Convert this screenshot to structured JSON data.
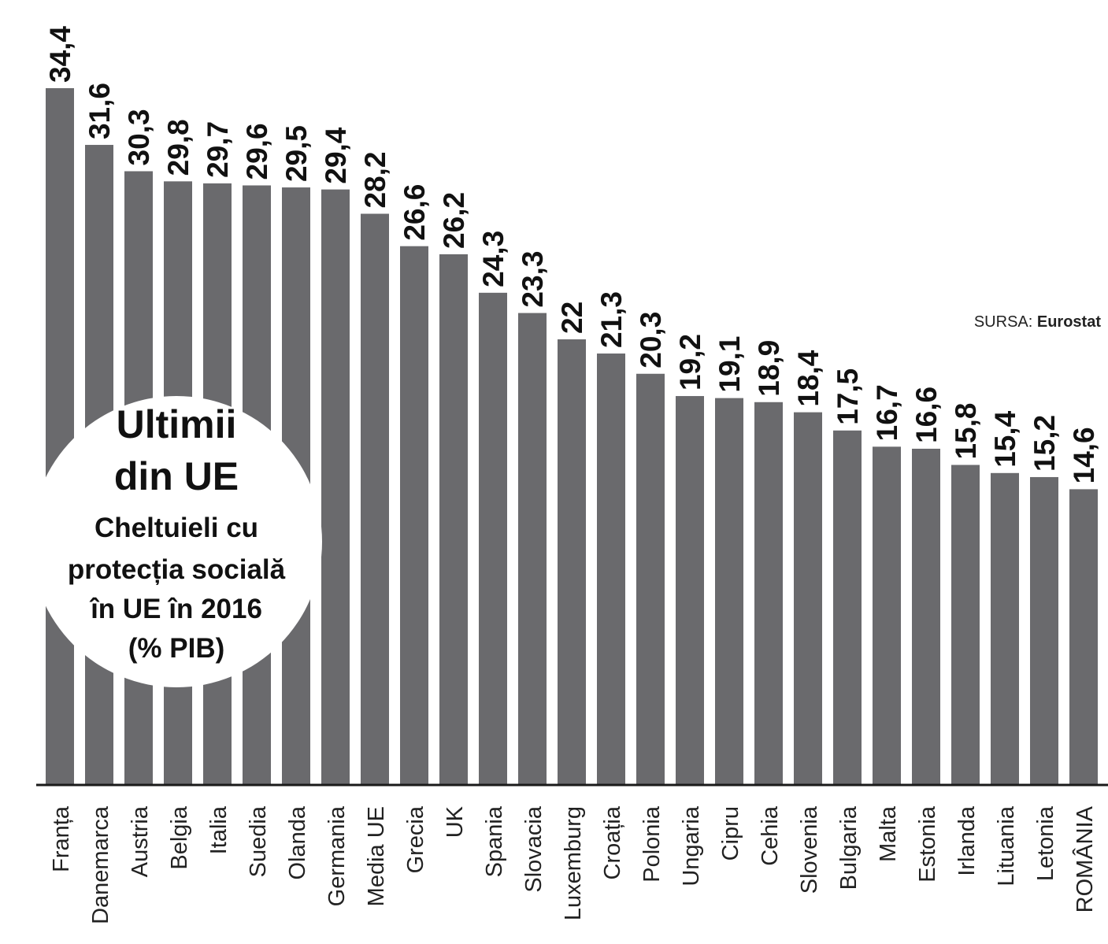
{
  "chart_data": {
    "type": "bar",
    "title_lines": [
      "Ultimii",
      "din UE"
    ],
    "subtitle_lines": [
      "Cheltuieli cu",
      "protecția socială",
      "în UE în 2016",
      "(% PIB)"
    ],
    "source_label": "SURSA:",
    "source_value": "Eurostat",
    "categories": [
      "Franța",
      "Danemarca",
      "Austria",
      "Belgia",
      "Italia",
      "Suedia",
      "Olanda",
      "Germania",
      "Media UE",
      "Grecia",
      "UK",
      "Spania",
      "Slovacia",
      "Luxemburg",
      "Croația",
      "Polonia",
      "Ungaria",
      "Cipru",
      "Cehia",
      "Slovenia",
      "Bulgaria",
      "Malta",
      "Estonia",
      "Irlanda",
      "Lituania",
      "Letonia",
      "ROMÂNIA"
    ],
    "values": [
      34.4,
      31.6,
      30.3,
      29.8,
      29.7,
      29.6,
      29.5,
      29.4,
      28.2,
      26.6,
      26.2,
      24.3,
      23.3,
      22,
      21.3,
      20.3,
      19.2,
      19.1,
      18.9,
      18.4,
      17.5,
      16.7,
      16.6,
      15.8,
      15.4,
      15.2,
      14.6
    ],
    "value_labels": [
      "34,4",
      "31,6",
      "30,3",
      "29,8",
      "29,7",
      "29,6",
      "29,5",
      "29,4",
      "28,2",
      "26,6",
      "26,2",
      "24,3",
      "23,3",
      "22",
      "21,3",
      "20,3",
      "19,2",
      "19,1",
      "18,9",
      "18,4",
      "17,5",
      "16,7",
      "16,6",
      "15,8",
      "15,4",
      "15,2",
      "14,6"
    ],
    "bar_color": "#6a6a6d",
    "ylim": [
      0,
      34.4
    ],
    "grid": false,
    "legend": "none"
  }
}
